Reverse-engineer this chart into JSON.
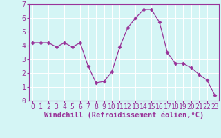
{
  "x": [
    0,
    1,
    2,
    3,
    4,
    5,
    6,
    7,
    8,
    9,
    10,
    11,
    12,
    13,
    14,
    15,
    16,
    17,
    18,
    19,
    20,
    21,
    22,
    23
  ],
  "y": [
    4.2,
    4.2,
    4.2,
    3.9,
    4.2,
    3.9,
    4.2,
    2.5,
    1.3,
    1.4,
    2.1,
    3.9,
    5.3,
    6.0,
    6.6,
    6.6,
    5.7,
    3.5,
    2.7,
    2.7,
    2.4,
    1.9,
    1.5,
    0.4
  ],
  "xlabel": "Windchill (Refroidissement éolien,°C)",
  "ylim": [
    0,
    7
  ],
  "xlim_min": -0.5,
  "xlim_max": 23.5,
  "yticks": [
    0,
    1,
    2,
    3,
    4,
    5,
    6,
    7
  ],
  "xticks": [
    0,
    1,
    2,
    3,
    4,
    5,
    6,
    7,
    8,
    9,
    10,
    11,
    12,
    13,
    14,
    15,
    16,
    17,
    18,
    19,
    20,
    21,
    22,
    23
  ],
  "line_color": "#993399",
  "marker": "D",
  "marker_size": 2.5,
  "bg_color": "#d4f5f5",
  "grid_color": "#ffffff",
  "axis_color": "#993399",
  "label_color": "#993399",
  "tick_fontsize": 7,
  "xlabel_fontsize": 7.5
}
